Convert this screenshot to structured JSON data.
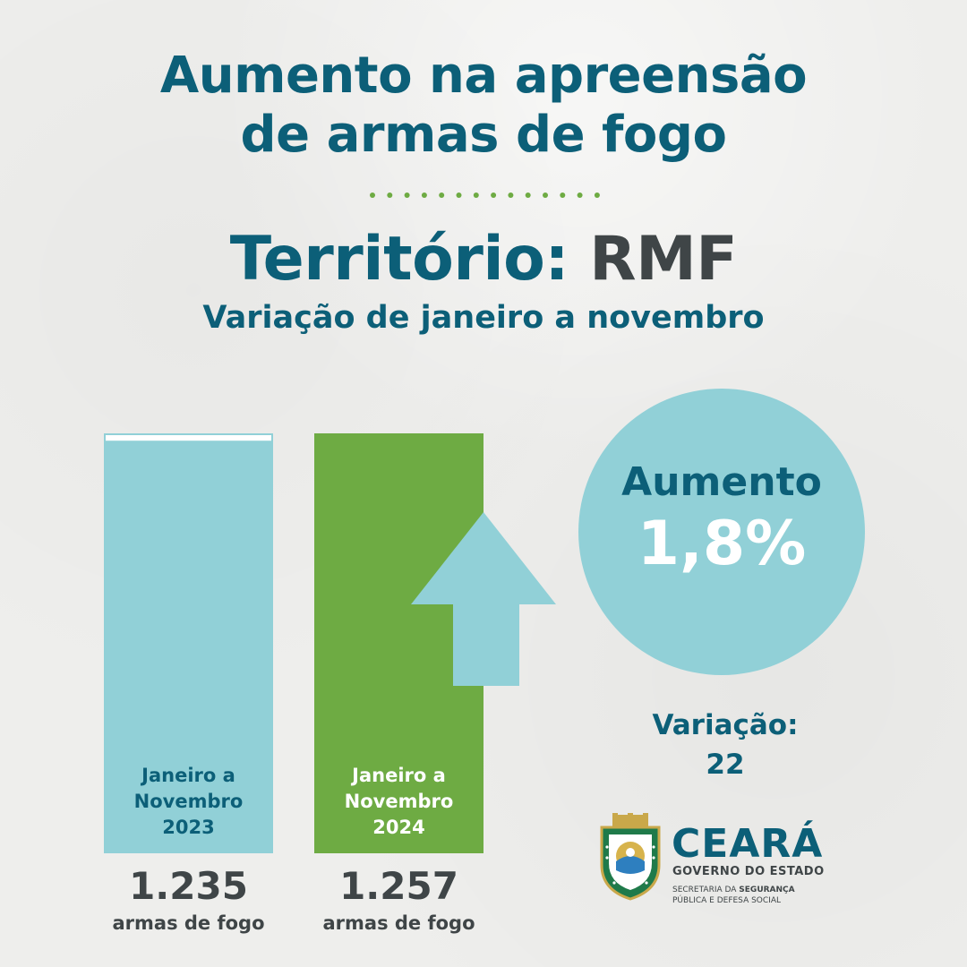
{
  "title": {
    "line1": "Aumento na apreensão",
    "line2": "de armas de fogo"
  },
  "territory": {
    "label": "Território:",
    "value": "RMF"
  },
  "subtitle": "Variação de janeiro a novembro",
  "colors": {
    "teal_dark": "#0c5f78",
    "teal_light": "#91d0d7",
    "green": "#6eab43",
    "gray_text": "#3f4547",
    "dots": "#6eab43"
  },
  "chart_data": {
    "type": "bar",
    "categories": [
      "Janeiro a Novembro 2023",
      "Janeiro a Novembro 2024"
    ],
    "category_lines": [
      [
        "Janeiro a",
        "Novembro",
        "2023"
      ],
      [
        "Janeiro a",
        "Novembro",
        "2024"
      ]
    ],
    "values": [
      1235,
      1257
    ],
    "value_labels": [
      "1.235",
      "1.257"
    ],
    "unit": "armas de fogo",
    "bar_colors": [
      "#91d0d7",
      "#6eab43"
    ],
    "label_colors": [
      "#0c5f78",
      "#ffffff"
    ],
    "ylim": [
      0,
      1257
    ],
    "grid": false,
    "legend": "none"
  },
  "highlight": {
    "label": "Aumento",
    "value": "1,8%",
    "variation_label": "Variação:",
    "variation_value": "22",
    "arrow_icon": "arrow-up-icon"
  },
  "logo": {
    "main": "CEARÁ",
    "sub": "GOVERNO DO ESTADO",
    "sec_line1_pre": "SECRETARIA DA ",
    "sec_line1_bold": "SEGURANÇA",
    "sec_line2": "PÚBLICA E DEFESA SOCIAL",
    "emblem_icon": "state-coat-of-arms-icon"
  }
}
